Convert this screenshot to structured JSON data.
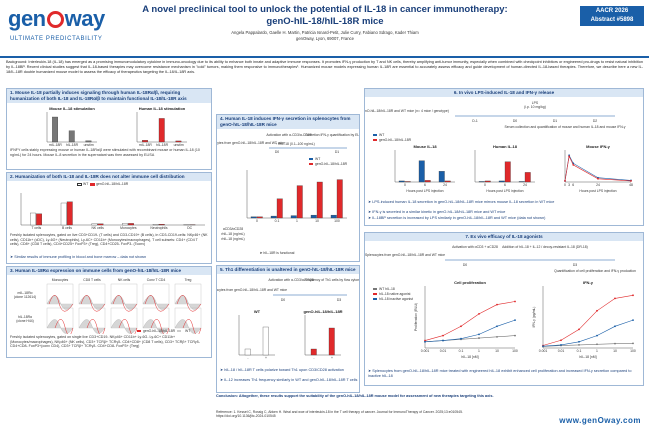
{
  "header": {
    "logo_left": "gen",
    "logo_right": "way",
    "tagline": "ULTIMATE PREDICTABILITY",
    "title_line1": "A novel preclinical tool to unlock the potential of IL-18 in cancer immunotherapy:",
    "title_line2": "genO-hIL-18/hIL-18R mice",
    "authors": "Angela Pappalardo, Gaelle H. Martin, Patricia Isnard-Petit, Julie Curry, Fabiano Sdrago, Kader Thiam",
    "affiliation": "genOway, Lyon, 69007, France",
    "badge_line1": "AACR 2026",
    "badge_line2": "Abstract #5898"
  },
  "background": "Background: Interleukin-18 (IL-18) has emerged as a promising immunomodulatory cytokine in immuno-oncology due to its ability to enhance both innate and adaptive immune responses. It promotes IFN-γ production by T and NK cells, thereby amplifying anti-tumor immunity, especially when combined with checkpoint inhibitors or engineered pro-drugs to resist natural inhibition by IL-18BP. Recent clinical studies suggest that IL-18-based therapies may overcome resistance mechanism in \"cold\" tumors, making them responsive to immunotherapies¹. Humanized mouse models expressing human IL-18R are essential to accurately assess efficacy and guide development of human-directed IL-18-based therapies. Therefore, we describe here a new IL-18/IL-18R double humanized mouse model to assess the efficacy of therapeutics targeting the IL-18/IL-18R axis.",
  "panel1": {
    "title": "1. Mouse IL-18 partially induces signaling through human IL-18Rα/β, requiring humanization of both IL-18 and IL-18Rα/β to maintain functional IL-18/IL-18R axis",
    "chart_a_title": "Mouse IL-18 stimulation",
    "chart_b_title": "Human IL-18 stimulation",
    "note": "IFNFY cells stably expressing mouse or human IL-18Rα/β were stimulated with recombinant mouse or human IL-18 (10 ng/mL) for 24 hours. Mouse IL-8 secretion in the supernatant was then assessed by ELISA"
  },
  "panel2": {
    "title": "2. Humanization of both IL-18 and IL-18R does not alter immune cell distribution",
    "legend_wt": "WT",
    "legend_ki": "genO-hIL-18/hIL-18R",
    "categories": [
      "T cells",
      "B cells",
      "NK cells",
      "Monocytes",
      "Neutrophils",
      "DC"
    ],
    "note": "Freshly isolated splenocytes, gated on live CD3+CD19- (T cells) and CD3-CD19+ (B cells), in CD3-CD19-cells: NKp46+ (NK cells), CD11b+ (cDC), Ly-6G+ (Neutrophils), Ly-6C+ CD11b+ (Monocytes/macrophages), T cell subsets: CD4+ (CD4 T cells), CD8+ (CD8 T cells), CD4+CD25+ FoxP3+ (Treg), CD4+CD25- FoxP3- (Tconv)",
    "bullet": "Similar results of immune profiling in blood and bone marrow – data not shown"
  },
  "panel3": {
    "title": "3. Human IL-18Rα expression on immune cells from genO-hIL-18/hIL-18R mice",
    "col_headers": [
      "Monocytes",
      "CD8 T cells",
      "NK cells",
      "Conv T CD4",
      "Treg"
    ],
    "row1_label": "mIL-18Rα",
    "row1_sub": "(clone 112614)",
    "row2_label": "hIL-18Rα",
    "row2_sub": "(clone H44)",
    "legend_wt": "WT",
    "legend_ki": "genO-hIL-18/hIL-18R",
    "note": "Freshly isolated splenocytes, gated on single live CD3+CD19- NKp46+ CD11b+ Ly-6G- Ly-6C+ CD11b+ (Monocytes/macrophages), NKp46+ (NK cells), CD3+ TCRβ+ TCRγδ- CD4+CD8+ (CD8 T cells), CD3+ TCRβ+ TCRγδ- CD4+CD8- FoxP3+(conv CD4), CD3+ TCRβ+ TCRγδ- CD4+CD8- FoxP3+ (Treg)"
  },
  "panel4": {
    "title": "4. Human IL-18 induces IFN-γ secretion in splenocytes from genO-hIL-18/hIL-18R mice",
    "protocol_step1": "Activation with α-CD3/α-CD28",
    "protocol_step2": "Secretion IFN-γ quantification by ELISA",
    "protocol_left": "Splenocytes from genO-hIL-18/hIL-18R and WT mice",
    "protocol_mid": "+ rhIL-18 (0.1–100 ng/mL)",
    "protocol_day0": "D0",
    "protocol_day1": "D1",
    "legend_wt": "WT",
    "legend_ki": "genO-hIL-18/hIL-18R",
    "row_labels": [
      "αCD3/αCD28",
      "rhIL-18 (ng/mL)",
      "rhIL-18 (ng/mL)"
    ],
    "bullet": "hIL-18R is functional"
  },
  "panel5": {
    "title": "5. Th1 differentiation is unaltered in genO-hIL-18/hIL-18R mice",
    "protocol_left": "Splenocytes from genO-hIL-18/hIL-18R and WT mice",
    "protocol_step1": "Activation with α-CD3/α-CD28",
    "protocol_step2": "Frequency of Th1 cells by flow cytometry",
    "protocol_day0": "D0",
    "protocol_day3": "D3",
    "chart_a_title": "WT",
    "chart_b_title": "genO-hIL-18/hIL-18R",
    "bullet1": "hIL-18 / hIL-18R T cells polarize toward Th1 upon CD3/CD28 activation",
    "bullet2": "IL-12 increases Th1 frequency similarly in WT and genO-hIL-18/hIL-18R T cells"
  },
  "panel6": {
    "title": "6. In vivo LPS-induced IL-18 and IFN-γ release",
    "protocol_left": "genO-hIL-18/hIL-18R and WT mice (n= 4 mice / genotype)",
    "protocol_lps": "LPS",
    "protocol_dose": "(i.p. 10 mg/kg)",
    "protocol_step": "Serum collection and quantification of mouse and human IL-18 and mouse IFN-γ",
    "protocol_days": [
      "D-1",
      "D0",
      "D1",
      "D2"
    ],
    "chart_a_title": "Mouse IL-18",
    "chart_b_title": "Human IL-18",
    "chart_c_title": "Mouse IFN-γ",
    "legend_wt": "WT",
    "legend_ki": "genO-hIL-18/hIL-18R",
    "xlabel_a": "Hours post LPS injection",
    "xlabel_b": "Hours post LPS injection",
    "xlabel_c": "Hours post LPS injection",
    "bullet1": "LPS-induced human IL-18 secretion in genO-hIL-18/hIL-18R mice mirrors mouse IL-18 secretion in WT mice",
    "bullet2": "IFN-γ is secreted in a similar kinetic in genO-hIL-18/hIL-18R mice and WT mice",
    "bullet3": "IL-18BP secretion is increased by LPS similarly in genO-hIL-18/hIL-18R and WT mice (data not shown)"
  },
  "panel7": {
    "title": "7. Ex vivo efficacy of IL-18 agonists",
    "protocol_left": "Splenocytes from genO-hIL-18/hIL-18R and WT mice",
    "protocol_step1": "Activation with αCD3 + αCD28",
    "protocol_step2": "Addition of hIL-18 + IL-12 / decoy-resistant IL-18 (DR-18)",
    "protocol_step3": "Quantification of cell proliferation and IFN-γ production",
    "protocol_days": [
      "D0",
      "D3"
    ],
    "chart_a_title": "Cell proliferation",
    "chart_b_title": "IFN-γ",
    "legend1": "WT hIL-18",
    "legend2": "hIL-18 native agonist",
    "legend3": "hIL-18 inactive agonist",
    "xlabel": "hIL-18 [nM]",
    "ylabel_a": "Proliferation (RLU)",
    "ylabel_b": "IFN-γ (pg/mL)",
    "bullet": "Splenocytes from genO-hIL-18/hIL-18R mice treated with engineered hIL-18 exhibit enhanced cell proliferation and increased IFN-γ secretion compared to inactive hIL-18"
  },
  "conclusion": "Conclusion: Altogether, these results support the suitability of the genO-hIL-18/hIL-18R mouse model for assessment of new therapies targeting this axis.",
  "reference": "Reference: 1. Kessel C, Rossig C, Abken H. Weal and woe of interleukin-18 in the T cell therapy of cancer. Journal for ImmunoTherapy of Cancer. 2025;13:e010545. https://doi.org/10.1136/jitc-2024-010545",
  "footer_url": "www.genOway.com",
  "colors": {
    "primary": "#1a5fa8",
    "accent": "#e0292b",
    "panel_header": "#d9e6f4"
  },
  "chart_data": [
    {
      "type": "bar",
      "title": "Mouse IL-18 stimulation",
      "categories": [
        "mIL-18R",
        "hIL-18R",
        "unstim"
      ],
      "series": [
        {
          "name": "",
          "values": [
            100,
            45,
            5
          ]
        }
      ],
      "ylim": [
        0,
        120
      ]
    },
    {
      "type": "bar",
      "title": "Human IL-18 stimulation",
      "categories": [
        "mIL-18R",
        "hIL-18R",
        "unstim"
      ],
      "series": [
        {
          "name": "",
          "values": [
            8,
            110,
            5
          ]
        }
      ],
      "ylim": [
        0,
        140
      ]
    },
    {
      "type": "bar",
      "title": "",
      "categories": [
        "T cells",
        "B cells",
        "NK cells",
        "Monocytes",
        "Neutrophils",
        "DC"
      ],
      "series": [
        {
          "name": "WT",
          "values": [
            30,
            55,
            3,
            4,
            2,
            1
          ]
        },
        {
          "name": "genO-hIL-18/hIL-18R",
          "values": [
            28,
            58,
            3,
            4,
            2,
            1
          ]
        }
      ],
      "ylim": [
        0,
        80
      ]
    },
    {
      "type": "bar",
      "title": "",
      "categories": [
        "0",
        "0.1",
        "1",
        "10",
        "100"
      ],
      "series": [
        {
          "name": "WT",
          "values": [
            5,
            8,
            10,
            12,
            12
          ]
        },
        {
          "name": "genO-hIL-18/hIL-18R",
          "values": [
            5,
            80,
            135,
            150,
            160
          ]
        }
      ],
      "ylim": [
        0,
        200
      ]
    },
    {
      "type": "bar",
      "title": "WT",
      "categories": [
        "-",
        "+"
      ],
      "series": [
        {
          "name": "",
          "values": [
            6,
            28
          ]
        }
      ],
      "ylim": [
        0,
        40
      ]
    },
    {
      "type": "bar",
      "title": "genO-hIL-18/hIL-18R",
      "categories": [
        "-",
        "+"
      ],
      "series": [
        {
          "name": "",
          "values": [
            6,
            27
          ]
        }
      ],
      "ylim": [
        0,
        40
      ]
    },
    {
      "type": "bar",
      "title": "Mouse IL-18",
      "categories": [
        "0",
        "6",
        "24"
      ],
      "series": [
        {
          "name": "WT",
          "values": [
            2,
            40,
            20
          ]
        },
        {
          "name": "genO-hIL-18/hIL-18R",
          "values": [
            1,
            3,
            2
          ]
        }
      ],
      "ylim": [
        0,
        60
      ]
    },
    {
      "type": "bar",
      "title": "Human IL-18",
      "categories": [
        "0",
        "6",
        "24"
      ],
      "series": [
        {
          "name": "WT",
          "values": [
            1,
            2,
            1
          ]
        },
        {
          "name": "genO-hIL-18/hIL-18R",
          "values": [
            2,
            38,
            18
          ]
        }
      ],
      "ylim": [
        0,
        60
      ]
    },
    {
      "type": "line",
      "title": "Mouse IFN-γ",
      "x": [
        0,
        3,
        6,
        24,
        48
      ],
      "series": [
        {
          "name": "WT",
          "values": [
            2,
            50,
            35,
            8,
            3
          ]
        },
        {
          "name": "genO-hIL-18/hIL-18R",
          "values": [
            2,
            48,
            32,
            6,
            2
          ]
        }
      ],
      "ylim": [
        0,
        60
      ]
    },
    {
      "type": "line",
      "title": "Cell proliferation",
      "x": [
        0.001,
        0.01,
        0.1,
        1,
        10,
        100
      ],
      "series": [
        {
          "name": "WT hIL-18",
          "values": [
            10,
            12,
            14,
            16,
            18,
            20
          ]
        },
        {
          "name": "hIL-18 native agonist",
          "values": [
            12,
            20,
            35,
            55,
            70,
            75
          ]
        },
        {
          "name": "hIL-18 inactive agonist",
          "values": [
            10,
            12,
            15,
            22,
            35,
            45
          ]
        }
      ],
      "ylim": [
        0,
        100
      ]
    },
    {
      "type": "line",
      "title": "IFN-γ",
      "x": [
        0.001,
        0.01,
        0.1,
        1,
        10,
        100
      ],
      "series": [
        {
          "name": "WT hIL-18",
          "values": [
            5,
            8,
            10,
            12,
            14,
            15
          ]
        },
        {
          "name": "hIL-18 native agonist",
          "values": [
            8,
            25,
            60,
            120,
            160,
            170
          ]
        },
        {
          "name": "hIL-18 inactive agonist",
          "values": [
            6,
            10,
            20,
            40,
            70,
            90
          ]
        }
      ],
      "ylim": [
        0,
        200
      ]
    }
  ]
}
